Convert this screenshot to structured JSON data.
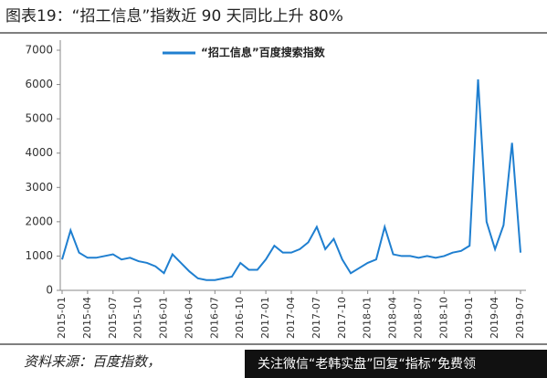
{
  "chart_data": {
    "type": "line",
    "title": "图表19：“招工信息”指数近 90 天同比上升 80%",
    "categories": [
      "2015-01",
      null,
      null,
      "2015-04",
      null,
      null,
      "2015-07",
      null,
      null,
      "2015-10",
      null,
      null,
      "2016-01",
      null,
      null,
      "2016-04",
      null,
      null,
      "2016-07",
      null,
      null,
      "2016-10",
      null,
      null,
      "2017-01",
      null,
      null,
      "2017-04",
      null,
      null,
      "2017-07",
      null,
      null,
      "2017-10",
      null,
      null,
      "2018-01",
      null,
      null,
      "2018-04",
      null,
      null,
      "2018-07",
      null,
      null,
      "2018-10",
      null,
      null,
      "2019-01",
      null,
      null,
      "2019-04",
      null,
      null,
      "2019-07"
    ],
    "series": [
      {
        "name": "“招工信息”百度搜索指数",
        "color": "#1f7fd0",
        "values": [
          900,
          1750,
          1100,
          950,
          950,
          1000,
          1050,
          900,
          950,
          850,
          800,
          700,
          500,
          1050,
          800,
          550,
          350,
          300,
          300,
          350,
          400,
          800,
          600,
          600,
          900,
          1300,
          1100,
          1100,
          1200,
          1400,
          1850,
          1200,
          1500,
          900,
          500,
          650,
          800,
          900,
          1850,
          1050,
          1000,
          1000,
          950,
          1000,
          950,
          1000,
          1100,
          1150,
          1300,
          6150,
          2000,
          1200,
          1900,
          4300,
          1100
        ]
      }
    ],
    "ylim": [
      0,
      7000
    ],
    "yticks": [
      0,
      1000,
      2000,
      3000,
      4000,
      5000,
      6000,
      7000
    ],
    "source": "资料来源：百度指数，",
    "banner": "关注微信“老韩实盘”回复“指标”免费领"
  }
}
